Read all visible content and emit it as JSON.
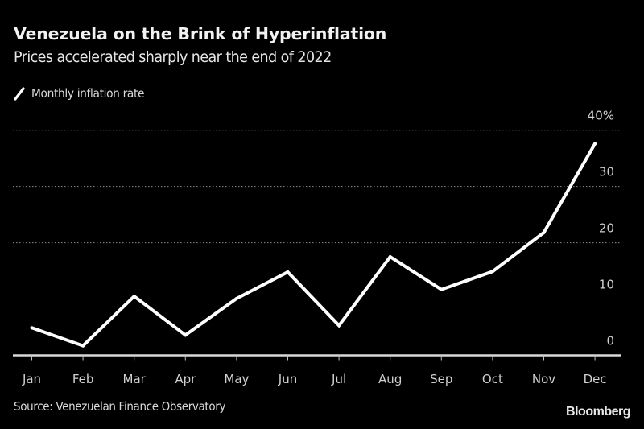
{
  "header": {
    "title": "Venezuela on the Brink of Hyperinflation",
    "subtitle": "Prices accelerated sharply near the end of 2022"
  },
  "legend": {
    "items": [
      {
        "label": "Monthly inflation rate",
        "color": "#ffffff",
        "icon": "line-swatch-icon"
      }
    ]
  },
  "footer": {
    "source": "Source: Venezuelan Finance Observatory",
    "logo": "Bloomberg"
  },
  "colors": {
    "background": "#000000",
    "line": "#ffffff",
    "grid": "#8c8c8c",
    "text": "#d9d9d9"
  },
  "chart_data": {
    "type": "line",
    "title": "Venezuela on the Brink of Hyperinflation",
    "subtitle": "Prices accelerated sharply near the end of 2022",
    "xlabel": "",
    "ylabel": "",
    "categories": [
      "Jan",
      "Feb",
      "Mar",
      "Apr",
      "May",
      "Jun",
      "Jul",
      "Aug",
      "Sep",
      "Oct",
      "Nov",
      "Dec"
    ],
    "series": [
      {
        "name": "Monthly inflation rate",
        "values": [
          4.9,
          1.7,
          10.5,
          3.6,
          10.1,
          14.8,
          5.3,
          17.5,
          11.7,
          14.9,
          21.8,
          37.6
        ]
      }
    ],
    "ylim": [
      0,
      40
    ],
    "yticks": [
      0,
      10,
      20,
      30,
      40
    ],
    "ytick_labels": [
      "0",
      "10",
      "20",
      "30",
      "40%"
    ],
    "y_axis_position": "right",
    "grid": "horizontal dotted",
    "legend_position": "top-left",
    "source": "Source: Venezuelan Finance Observatory"
  }
}
